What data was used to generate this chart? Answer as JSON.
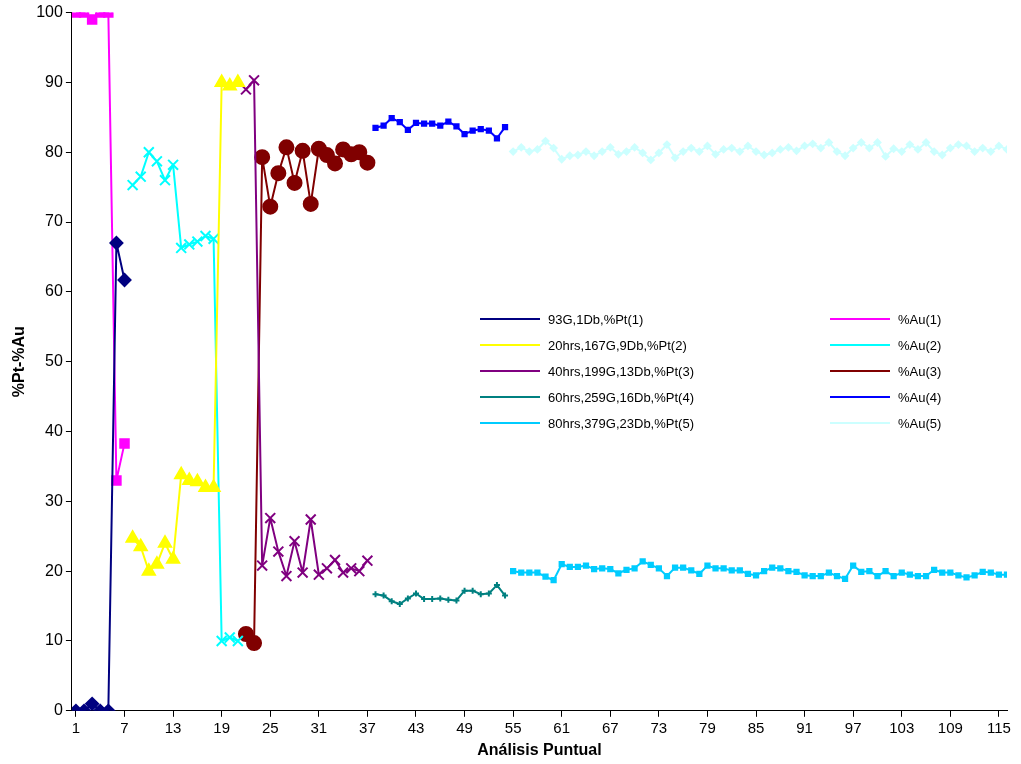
{
  "chart_data": {
    "type": "line",
    "xlabel": "Análisis Puntual",
    "ylabel": "%Pt-%Au",
    "xlim": [
      0.5,
      116
    ],
    "xticks": [
      1,
      7,
      13,
      19,
      25,
      31,
      37,
      43,
      49,
      55,
      61,
      67,
      73,
      79,
      85,
      91,
      97,
      103,
      109,
      115
    ],
    "ylim": [
      0,
      100
    ],
    "yticks": [
      0,
      10,
      20,
      30,
      40,
      50,
      60,
      70,
      80,
      90,
      100
    ],
    "grid": false,
    "legend": "right",
    "series": [
      {
        "name": "93G,1Db,%Pt(1)",
        "color": "#000080",
        "marker": "diamond",
        "x": [
          1,
          2,
          3,
          4,
          5,
          6,
          7
        ],
        "values": [
          0,
          0,
          1,
          0,
          0,
          67,
          61.7
        ]
      },
      {
        "name": "%Au(1)",
        "color": "#ff00ff",
        "marker": "square",
        "x": [
          1,
          2,
          3,
          4,
          5,
          6,
          7
        ],
        "values": [
          100,
          100,
          99,
          100,
          100,
          33,
          38.3
        ]
      },
      {
        "name": "20hrs,167G,9Db,%Pt(2)",
        "color": "#ffff00",
        "marker": "triangle",
        "x": [
          8,
          9,
          10,
          11,
          12,
          13,
          14,
          15,
          16,
          17,
          18,
          19,
          20,
          21
        ],
        "values": [
          24.7,
          23.5,
          20,
          21,
          24,
          21.7,
          33.8,
          33,
          32.8,
          32,
          32,
          90,
          89.5,
          90
        ]
      },
      {
        "name": "%Au(2)",
        "color": "#00ffff",
        "marker": "cross",
        "x": [
          8,
          9,
          10,
          11,
          12,
          13,
          14,
          15,
          16,
          17,
          18,
          19,
          20,
          21
        ],
        "values": [
          75.3,
          76.5,
          80,
          78.7,
          76,
          78.2,
          66.3,
          66.8,
          67.2,
          68,
          67.6,
          10,
          10.5,
          10
        ]
      },
      {
        "name": "40hrs,199G,13Db,%Pt(3)",
        "color": "#800080",
        "marker": "cross",
        "x": [
          22,
          23,
          24,
          25,
          26,
          27,
          28,
          29,
          30,
          31,
          32,
          33,
          34,
          35,
          36,
          37
        ],
        "values": [
          89,
          90.3,
          20.8,
          27.6,
          22.8,
          19.3,
          24.3,
          19.8,
          27.4,
          19.5,
          20.4,
          21.6,
          19.8,
          20.4,
          20,
          21.5
        ]
      },
      {
        "name": "%Au(3)",
        "color": "#800000",
        "marker": "circle",
        "x": [
          22,
          23,
          24,
          25,
          26,
          27,
          28,
          29,
          30,
          31,
          32,
          33,
          34,
          35,
          36,
          37
        ],
        "values": [
          11,
          9.7,
          79.3,
          72.2,
          77,
          80.7,
          75.6,
          80.2,
          72.6,
          80.5,
          79.6,
          78.4,
          80.4,
          79.7,
          80,
          78.5
        ]
      },
      {
        "name": "60hrs,259G,16Db,%Pt(4)",
        "color": "#008080",
        "marker": "plus",
        "x": [
          38,
          39,
          40,
          41,
          42,
          43,
          44,
          45,
          46,
          47,
          48,
          49,
          50,
          51,
          52,
          53,
          54
        ],
        "values": [
          16.7,
          16.5,
          15.7,
          15.3,
          16.1,
          16.8,
          16,
          16,
          16.1,
          15.9,
          15.8,
          17.2,
          17.2,
          16.7,
          16.8,
          18,
          16.5
        ]
      },
      {
        "name": "%Au(4)",
        "color": "#0000ff",
        "marker": "square",
        "x": [
          38,
          39,
          40,
          41,
          42,
          43,
          44,
          45,
          46,
          47,
          48,
          49,
          50,
          51,
          52,
          53,
          54
        ],
        "values": [
          83.5,
          83.8,
          84.9,
          84.3,
          83.2,
          84.2,
          84.1,
          84.1,
          83.8,
          84.4,
          83.7,
          82.6,
          83.1,
          83.3,
          83.1,
          82,
          83.6
        ]
      },
      {
        "name": "80hrs,379G,23Db,%Pt(5)",
        "color": "#00ccff",
        "marker": "square",
        "x": [
          55,
          56,
          57,
          58,
          59,
          60,
          61,
          62,
          63,
          64,
          65,
          66,
          67,
          68,
          69,
          70,
          71,
          72,
          73,
          74,
          75,
          76,
          77,
          78,
          79,
          80,
          81,
          82,
          83,
          84,
          85,
          86,
          87,
          88,
          89,
          90,
          91,
          92,
          93,
          94,
          95,
          96,
          97,
          98,
          99,
          100,
          101,
          102,
          103,
          104,
          105,
          106,
          107,
          108,
          109,
          110,
          111,
          112,
          113,
          114,
          115,
          116
        ],
        "values": [
          20,
          19.8,
          19.8,
          19.8,
          19.2,
          18.7,
          21,
          20.6,
          20.6,
          20.8,
          20.3,
          20.4,
          20.3,
          19.7,
          20.2,
          20.4,
          21.4,
          20.9,
          20.4,
          19.3,
          20.5,
          20.5,
          20.1,
          19.6,
          20.8,
          20.4,
          20.4,
          20.1,
          20.1,
          19.6,
          19.4,
          20,
          20.5,
          20.4,
          20,
          19.9,
          19.4,
          19.3,
          19.3,
          19.8,
          19.3,
          18.9,
          20.8,
          19.9,
          20,
          19.3,
          20,
          19.3,
          19.8,
          19.5,
          19.3,
          19.3,
          20.2,
          19.8,
          19.8,
          19.4,
          19.1,
          19.4,
          19.9,
          19.8,
          19.5,
          19.5
        ]
      },
      {
        "name": "%Au(5)",
        "color": "#ccffff",
        "marker": "diamond",
        "x": [
          55,
          56,
          57,
          58,
          59,
          60,
          61,
          62,
          63,
          64,
          65,
          66,
          67,
          68,
          69,
          70,
          71,
          72,
          73,
          74,
          75,
          76,
          77,
          78,
          79,
          80,
          81,
          82,
          83,
          84,
          85,
          86,
          87,
          88,
          89,
          90,
          91,
          92,
          93,
          94,
          95,
          96,
          97,
          98,
          99,
          100,
          101,
          102,
          103,
          104,
          105,
          106,
          107,
          108,
          109,
          110,
          111,
          112,
          113,
          114,
          115,
          116
        ],
        "values": [
          80.1,
          80.7,
          80.1,
          80.4,
          81.6,
          80.6,
          79,
          79.5,
          79.6,
          80.1,
          79.5,
          80.1,
          80.7,
          79.7,
          80.1,
          80.7,
          79.9,
          78.9,
          79.9,
          81.1,
          79.2,
          80.1,
          80.6,
          80.1,
          80.9,
          79.7,
          80.4,
          80.6,
          80.1,
          80.9,
          80.1,
          79.6,
          79.9,
          80.4,
          80.7,
          80.2,
          80.9,
          81.2,
          80.6,
          81.4,
          80.1,
          79.5,
          80.6,
          81.4,
          80.6,
          81.4,
          79.4,
          80.5,
          80.1,
          81.1,
          80.4,
          81.4,
          80.1,
          79.6,
          80.6,
          81.1,
          80.9,
          80.1,
          80.6,
          80.1,
          80.9,
          80.4
        ]
      }
    ]
  }
}
